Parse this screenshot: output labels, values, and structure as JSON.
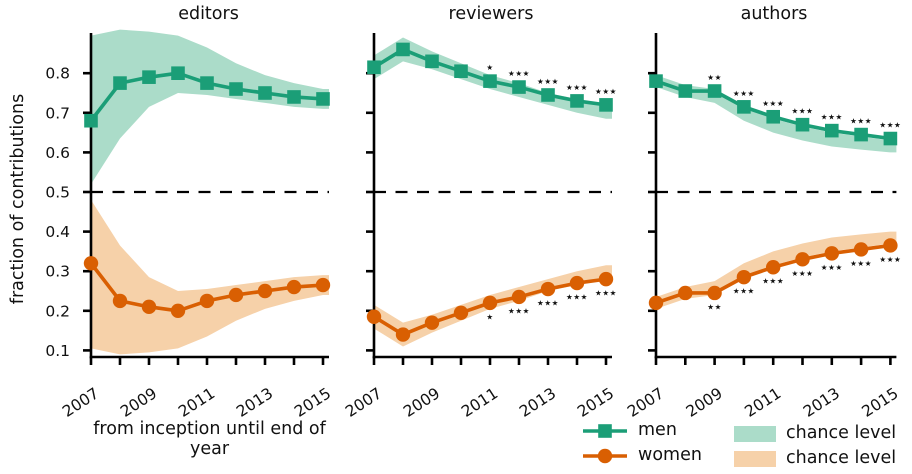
{
  "figure": {
    "ylabel": "fraction of contributions",
    "xlabel": "from inception until end of year",
    "chance_line_y": 0.5,
    "yticks": [
      "0.8",
      "0.7",
      "0.6",
      "0.5",
      "0.4",
      "0.3",
      "0.2",
      "0.1"
    ],
    "xtick_labels_shown": [
      "2007",
      "2009",
      "2011",
      "2013",
      "2015"
    ]
  },
  "colors": {
    "men": "#1b9e77",
    "women": "#d95f02",
    "men_band": "#abdcc9",
    "women_band": "#f6d1a9",
    "axis": "#000000",
    "text": "#111111"
  },
  "legend": {
    "items": [
      {
        "label": "men"
      },
      {
        "label": "women"
      },
      {
        "label": "chance level"
      },
      {
        "label": "chance level"
      }
    ]
  },
  "chart_data": [
    {
      "type": "line",
      "title": "editors",
      "x": [
        2007,
        2008,
        2009,
        2010,
        2011,
        2012,
        2013,
        2014,
        2015
      ],
      "ylim": [
        0.08,
        0.91
      ],
      "series": [
        {
          "name": "men",
          "marker": "square",
          "values": [
            0.68,
            0.775,
            0.79,
            0.8,
            0.775,
            0.76,
            0.75,
            0.74,
            0.735
          ],
          "chance_band_low": [
            0.52,
            0.635,
            0.715,
            0.75,
            0.745,
            0.735,
            0.725,
            0.715,
            0.71
          ],
          "chance_band_high": [
            0.895,
            0.91,
            0.905,
            0.895,
            0.865,
            0.825,
            0.795,
            0.775,
            0.76
          ],
          "significance": [
            "",
            "",
            "",
            "",
            "",
            "",
            "",
            "",
            ""
          ]
        },
        {
          "name": "women",
          "marker": "circle",
          "values": [
            0.32,
            0.225,
            0.21,
            0.2,
            0.225,
            0.24,
            0.25,
            0.26,
            0.265
          ],
          "chance_band_low": [
            0.105,
            0.09,
            0.095,
            0.105,
            0.135,
            0.175,
            0.205,
            0.225,
            0.24
          ],
          "chance_band_high": [
            0.48,
            0.365,
            0.285,
            0.25,
            0.255,
            0.265,
            0.275,
            0.285,
            0.29
          ],
          "significance": [
            "",
            "",
            "",
            "",
            "",
            "",
            "",
            "",
            ""
          ]
        }
      ]
    },
    {
      "type": "line",
      "title": "reviewers",
      "x": [
        2007,
        2008,
        2009,
        2010,
        2011,
        2012,
        2013,
        2014,
        2015
      ],
      "ylim": [
        0.08,
        0.91
      ],
      "series": [
        {
          "name": "men",
          "marker": "square",
          "values": [
            0.815,
            0.86,
            0.83,
            0.805,
            0.78,
            0.765,
            0.745,
            0.73,
            0.72
          ],
          "chance_band_low": [
            0.785,
            0.83,
            0.81,
            0.785,
            0.76,
            0.74,
            0.72,
            0.7,
            0.685
          ],
          "chance_band_high": [
            0.845,
            0.89,
            0.855,
            0.825,
            0.795,
            0.775,
            0.75,
            0.735,
            0.715
          ],
          "significance": [
            "",
            "",
            "",
            "",
            "*",
            "***",
            "***",
            "***",
            "***"
          ]
        },
        {
          "name": "women",
          "marker": "circle",
          "values": [
            0.185,
            0.14,
            0.17,
            0.195,
            0.22,
            0.235,
            0.255,
            0.27,
            0.28
          ],
          "chance_band_low": [
            0.155,
            0.11,
            0.145,
            0.175,
            0.205,
            0.225,
            0.25,
            0.265,
            0.285
          ],
          "chance_band_high": [
            0.215,
            0.17,
            0.19,
            0.215,
            0.24,
            0.26,
            0.28,
            0.3,
            0.315
          ],
          "significance": [
            "",
            "",
            "",
            "",
            "*",
            "***",
            "***",
            "***",
            "***"
          ]
        }
      ]
    },
    {
      "type": "line",
      "title": "authors",
      "x": [
        2007,
        2008,
        2009,
        2010,
        2011,
        2012,
        2013,
        2014,
        2015
      ],
      "ylim": [
        0.08,
        0.91
      ],
      "series": [
        {
          "name": "men",
          "marker": "square",
          "values": [
            0.78,
            0.755,
            0.755,
            0.715,
            0.69,
            0.67,
            0.655,
            0.645,
            0.635
          ],
          "chance_band_low": [
            0.765,
            0.74,
            0.725,
            0.68,
            0.65,
            0.63,
            0.615,
            0.607,
            0.6
          ],
          "chance_band_high": [
            0.795,
            0.77,
            0.76,
            0.715,
            0.685,
            0.665,
            0.65,
            0.64,
            0.63
          ],
          "significance": [
            "",
            "",
            "**",
            "***",
            "***",
            "***",
            "***",
            "***",
            "***"
          ]
        },
        {
          "name": "women",
          "marker": "circle",
          "values": [
            0.22,
            0.245,
            0.245,
            0.285,
            0.31,
            0.33,
            0.345,
            0.355,
            0.365
          ],
          "chance_band_low": [
            0.205,
            0.23,
            0.24,
            0.285,
            0.315,
            0.335,
            0.35,
            0.36,
            0.37
          ],
          "chance_band_high": [
            0.235,
            0.26,
            0.275,
            0.32,
            0.35,
            0.37,
            0.385,
            0.393,
            0.4
          ],
          "significance": [
            "",
            "",
            "**",
            "***",
            "***",
            "***",
            "***",
            "***",
            "***"
          ]
        }
      ]
    }
  ]
}
